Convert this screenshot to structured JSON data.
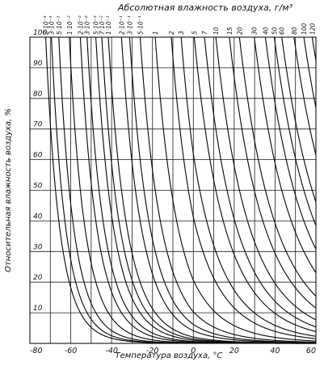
{
  "chart_data": {
    "type": "line",
    "title": "Абсолютная влажность воздуха, г/м³",
    "xlabel": "Температура воздуха, °С",
    "ylabel": "Относительная влажность воздуха, %",
    "xlim": [
      -80,
      60
    ],
    "ylim": [
      0,
      100
    ],
    "x_ticks": [
      -80,
      -60,
      -40,
      -20,
      0,
      20,
      40,
      60
    ],
    "x_tick_labels": [
      "-80",
      "-60",
      "-40",
      "-20",
      "0",
      "20",
      "40",
      "60"
    ],
    "y_ticks": [
      10,
      20,
      30,
      40,
      50,
      60,
      70,
      80,
      90,
      100
    ],
    "y_tick_labels": [
      "10",
      "20",
      "30",
      "40",
      "50",
      "60",
      "70",
      "80",
      "90",
      "100"
    ],
    "grid": true,
    "series": [
      {
        "name": "2·10⁻³",
        "value": 0.002
      },
      {
        "name": "3·10⁻³",
        "value": 0.003
      },
      {
        "name": "5·10⁻³",
        "value": 0.005
      },
      {
        "name": "1·10⁻²",
        "value": 0.01
      },
      {
        "name": "2·10⁻²",
        "value": 0.02
      },
      {
        "name": "3·10⁻²",
        "value": 0.03
      },
      {
        "name": "5·10⁻²",
        "value": 0.05
      },
      {
        "name": "7·10⁻²",
        "value": 0.07
      },
      {
        "name": "1·10⁻¹",
        "value": 0.1
      },
      {
        "name": "2·10⁻¹",
        "value": 0.2
      },
      {
        "name": "3·10⁻¹",
        "value": 0.3
      },
      {
        "name": "5·10⁻¹",
        "value": 0.5
      },
      {
        "name": "1",
        "value": 1
      },
      {
        "name": "2",
        "value": 2
      },
      {
        "name": "3",
        "value": 3
      },
      {
        "name": "5",
        "value": 5
      },
      {
        "name": "7",
        "value": 7
      },
      {
        "name": "10",
        "value": 10
      },
      {
        "name": "15",
        "value": 15
      },
      {
        "name": "20",
        "value": 20
      },
      {
        "name": "30",
        "value": 30
      },
      {
        "name": "40",
        "value": 40
      },
      {
        "name": "50",
        "value": 50
      },
      {
        "name": "60",
        "value": 60
      },
      {
        "name": "80",
        "value": 80
      },
      {
        "name": "100",
        "value": 100
      },
      {
        "name": "120",
        "value": 120
      }
    ]
  }
}
